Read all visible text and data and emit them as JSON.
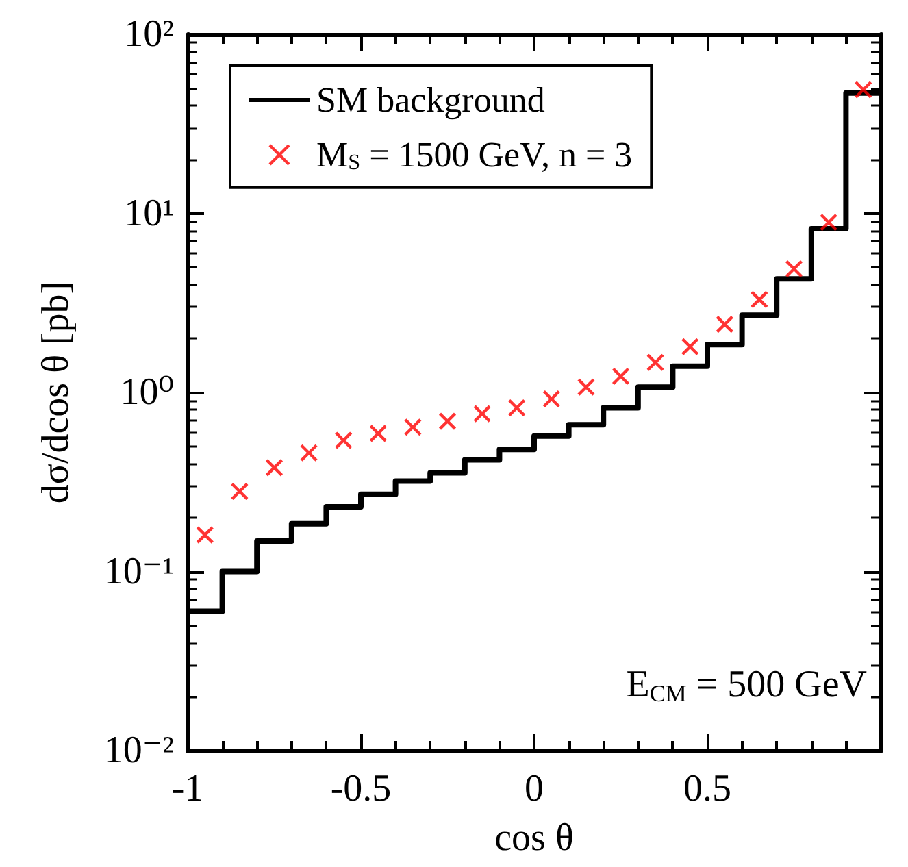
{
  "chart_data": {
    "type": "histogram",
    "xlabel": "cos θ",
    "ylabel": "dσ/dcos θ [pb]",
    "log": "y",
    "legend": "top left",
    "grid": false,
    "bins": [
      -1,
      -0.9,
      -0.8,
      -0.7,
      -0.6,
      -0.5,
      -0.4,
      -0.3,
      -0.2,
      -0.1,
      0,
      0.1,
      0.2,
      0.3,
      0.4,
      0.5,
      0.6,
      0.7,
      0.8,
      0.9,
      1
    ],
    "xlim": [
      -1,
      1
    ],
    "xticks": [
      -1,
      -0.5,
      0,
      0.5
    ],
    "ylim": [
      0.01,
      100
    ],
    "yticks": [
      {
        "value": 0.01,
        "label": "10⁻²"
      },
      {
        "value": 0.1,
        "label": "10⁻¹"
      },
      {
        "value": 1,
        "label": "10⁰"
      },
      {
        "value": 10,
        "label": "10¹"
      },
      {
        "value": 100,
        "label": "10²"
      }
    ],
    "series": [
      {
        "name": "SM background",
        "color": "#000000",
        "values": [
          0.06,
          0.1,
          0.148,
          0.185,
          0.23,
          0.27,
          0.32,
          0.355,
          0.42,
          0.48,
          0.57,
          0.66,
          0.82,
          1.07,
          1.4,
          1.85,
          2.7,
          4.3,
          8.2,
          47
        ]
      },
      {
        "type": "scatter",
        "name": "M$_{S}$ = 1500 GeV, n = 3",
        "color": "#ff0000",
        "marker": "cross",
        "x": [
          -0.95,
          -0.85,
          -0.75,
          -0.65,
          -0.55,
          -0.45,
          -0.35,
          -0.25,
          -0.15,
          -0.05,
          0.05,
          0.15,
          0.25,
          0.35,
          0.45,
          0.55,
          0.65,
          0.75,
          0.85,
          0.95
        ],
        "values": [
          0.16,
          0.28,
          0.38,
          0.46,
          0.54,
          0.59,
          0.64,
          0.69,
          0.76,
          0.82,
          0.92,
          1.07,
          1.23,
          1.47,
          1.8,
          2.4,
          3.3,
          4.9,
          8.9,
          49
        ]
      }
    ],
    "annotations": [
      "E$_{CM}$ = 500 GeV"
    ]
  }
}
